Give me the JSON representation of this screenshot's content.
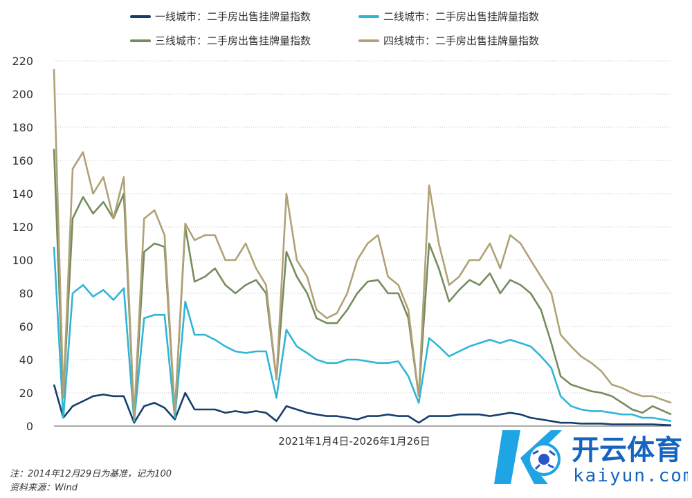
{
  "chart_data": {
    "type": "line",
    "title": "",
    "xlabel": "2021年1月4日-2026年1月26日",
    "ylabel": "",
    "ylim": [
      0,
      220
    ],
    "yticks": [
      0,
      20,
      40,
      60,
      80,
      100,
      120,
      140,
      160,
      180,
      200,
      220
    ],
    "grid": true,
    "legend_position": "top",
    "x_start": "2021-01-04",
    "x_end": "2026-01-26",
    "x": [
      "2021-01-04",
      "2021-02-01",
      "2021-03-01",
      "2021-04-01",
      "2021-05-01",
      "2021-06-01",
      "2021-07-01",
      "2021-08-01",
      "2021-09-01",
      "2021-10-01",
      "2021-11-01",
      "2021-12-01",
      "2022-01-01",
      "2022-02-01",
      "2022-03-01",
      "2022-04-01",
      "2022-05-01",
      "2022-06-01",
      "2022-07-01",
      "2022-08-01",
      "2022-09-01",
      "2022-10-01",
      "2022-11-01",
      "2022-12-01",
      "2023-01-01",
      "2023-02-01",
      "2023-03-01",
      "2023-04-01",
      "2023-05-01",
      "2023-06-01",
      "2023-07-01",
      "2023-08-01",
      "2023-09-01",
      "2023-10-01",
      "2023-11-01",
      "2023-12-01",
      "2024-01-01",
      "2024-02-01",
      "2024-03-01",
      "2024-04-01",
      "2024-05-01",
      "2024-06-01",
      "2024-07-01",
      "2024-08-01",
      "2024-09-01",
      "2024-10-01",
      "2024-11-01",
      "2024-12-01",
      "2025-01-01",
      "2025-02-01",
      "2025-03-01",
      "2025-04-01",
      "2025-05-01",
      "2025-06-01",
      "2025-07-01",
      "2025-08-01",
      "2025-09-01",
      "2025-10-01",
      "2025-11-01",
      "2025-12-01",
      "2026-01-26"
    ],
    "series": [
      {
        "name": "一线城市：二手房出售挂牌量指数",
        "color": "#153e6b",
        "values": [
          25,
          5,
          12,
          15,
          18,
          19,
          18,
          18,
          2,
          12,
          14,
          11,
          4,
          20,
          10,
          10,
          10,
          8,
          9,
          8,
          9,
          8,
          3,
          12,
          10,
          8,
          7,
          6,
          6,
          5,
          4,
          6,
          6,
          7,
          6,
          6,
          2,
          6,
          6,
          6,
          7,
          7,
          7,
          6,
          7,
          8,
          7,
          5,
          4,
          3,
          2,
          2,
          1.5,
          1.5,
          1.5,
          1,
          1,
          1,
          1,
          1,
          0.5
        ]
      },
      {
        "name": "二线城市：二手房出售挂牌量指数",
        "color": "#2fb5d8",
        "values": [
          108,
          5,
          80,
          85,
          78,
          82,
          76,
          83,
          3,
          65,
          67,
          67,
          5,
          75,
          55,
          55,
          52,
          48,
          45,
          44,
          45,
          45,
          17,
          58,
          48,
          44,
          40,
          38,
          38,
          40,
          40,
          39,
          38,
          38,
          39,
          30,
          14,
          53,
          48,
          42,
          45,
          48,
          50,
          52,
          50,
          52,
          50,
          48,
          42,
          35,
          18,
          12,
          10,
          9,
          9,
          8,
          7,
          7,
          5,
          5,
          3
        ]
      },
      {
        "name": "三线城市：二手房出售挂牌量指数",
        "color": "#758c5e",
        "values": [
          167,
          17,
          125,
          138,
          128,
          135,
          125,
          140,
          5,
          105,
          110,
          108,
          8,
          120,
          87,
          90,
          95,
          85,
          80,
          85,
          88,
          80,
          28,
          105,
          90,
          80,
          65,
          62,
          62,
          70,
          80,
          87,
          88,
          80,
          80,
          65,
          18,
          110,
          95,
          75,
          82,
          88,
          85,
          92,
          80,
          88,
          85,
          80,
          70,
          50,
          30,
          25,
          23,
          21,
          20,
          18,
          14,
          10,
          8,
          12,
          7
        ]
      },
      {
        "name": "四线城市：二手房出售挂牌量指数",
        "color": "#b0a176",
        "values": [
          215,
          17,
          155,
          165,
          140,
          150,
          125,
          150,
          5,
          125,
          130,
          115,
          8,
          122,
          112,
          115,
          115,
          100,
          100,
          110,
          95,
          85,
          28,
          140,
          100,
          90,
          70,
          65,
          68,
          80,
          100,
          110,
          115,
          90,
          85,
          70,
          18,
          145,
          110,
          85,
          90,
          100,
          100,
          110,
          95,
          115,
          110,
          100,
          90,
          80,
          55,
          48,
          42,
          38,
          33,
          25,
          23,
          20,
          18,
          18,
          14
        ]
      }
    ]
  },
  "notes": {
    "basis": "注：2014年12月29日为基准，记为100",
    "source": "资料来源：Wind"
  },
  "watermark": {
    "brand": "开云体育",
    "url": "kaiyun.com"
  }
}
